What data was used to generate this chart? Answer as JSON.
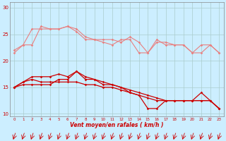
{
  "x": [
    0,
    1,
    2,
    3,
    4,
    5,
    6,
    7,
    8,
    9,
    10,
    11,
    12,
    13,
    14,
    15,
    16,
    17,
    18,
    19,
    20,
    21,
    22,
    23
  ],
  "line1": [
    21.5,
    23.0,
    23.0,
    26.5,
    26.0,
    26.0,
    26.5,
    25.5,
    24.0,
    24.0,
    23.5,
    23.0,
    24.0,
    24.0,
    21.5,
    21.5,
    24.0,
    23.0,
    23.0,
    23.0,
    21.5,
    23.0,
    23.0,
    21.5
  ],
  "line2": [
    22.0,
    23.0,
    26.0,
    26.0,
    26.0,
    26.0,
    26.5,
    26.0,
    24.5,
    24.0,
    24.0,
    24.0,
    23.5,
    24.5,
    23.5,
    21.5,
    23.5,
    23.5,
    23.0,
    23.0,
    21.5,
    21.5,
    23.0,
    21.5
  ],
  "line3": [
    15.0,
    15.5,
    15.5,
    15.5,
    15.5,
    16.5,
    16.5,
    18.0,
    16.5,
    16.5,
    15.5,
    15.5,
    15.0,
    14.5,
    14.0,
    13.5,
    13.0,
    12.5,
    12.5,
    12.5,
    12.5,
    12.5,
    12.5,
    11.0
  ],
  "line4": [
    15.0,
    16.0,
    17.0,
    17.0,
    17.0,
    17.5,
    17.0,
    18.0,
    17.0,
    16.5,
    16.0,
    15.5,
    15.0,
    14.0,
    13.5,
    11.0,
    11.0,
    12.5,
    12.5,
    12.5,
    12.5,
    14.0,
    12.5,
    11.0
  ],
  "line5": [
    15.0,
    16.0,
    16.5,
    16.0,
    16.0,
    16.0,
    16.0,
    16.0,
    15.5,
    15.5,
    15.0,
    15.0,
    14.5,
    14.0,
    13.5,
    13.0,
    12.5,
    12.5,
    12.5,
    12.5,
    12.5,
    12.5,
    12.5,
    11.0
  ],
  "color_light": "#e88080",
  "color_dark": "#cc0000",
  "bg_color": "#cceeff",
  "grid_color": "#aacccc",
  "xlabel": "Vent moyen/en rafales ( km/h )",
  "ylim": [
    9.5,
    31
  ],
  "yticks": [
    10,
    15,
    20,
    25,
    30
  ],
  "xlim": [
    -0.5,
    23.5
  ]
}
